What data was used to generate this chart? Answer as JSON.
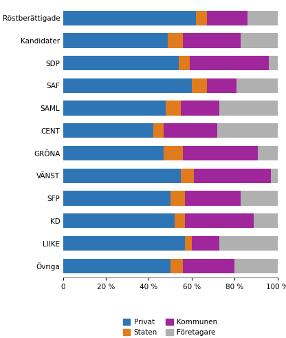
{
  "categories": [
    "Röstberättigade",
    "Kandidater",
    "SDP",
    "SAF",
    "SAML",
    "CENT",
    "GRÖNA",
    "VÄNST",
    "SFP",
    "KD",
    "LIIKE",
    "Övriga"
  ],
  "privat": [
    62,
    49,
    54,
    60,
    48,
    42,
    47,
    55,
    50,
    52,
    57,
    50
  ],
  "staten": [
    5,
    7,
    5,
    7,
    7,
    5,
    9,
    6,
    7,
    5,
    3,
    6
  ],
  "kommunen": [
    19,
    27,
    37,
    14,
    18,
    25,
    35,
    36,
    26,
    32,
    13,
    24
  ],
  "foretagare": [
    14,
    17,
    4,
    19,
    27,
    28,
    9,
    3,
    17,
    11,
    27,
    20
  ],
  "colors": {
    "privat": "#2e75b6",
    "staten": "#e07b1e",
    "kommunen": "#a0269b",
    "foretagare": "#b0b0b0"
  },
  "background_color": "#ffffff",
  "figsize": [
    4.16,
    4.91
  ],
  "dpi": 100
}
